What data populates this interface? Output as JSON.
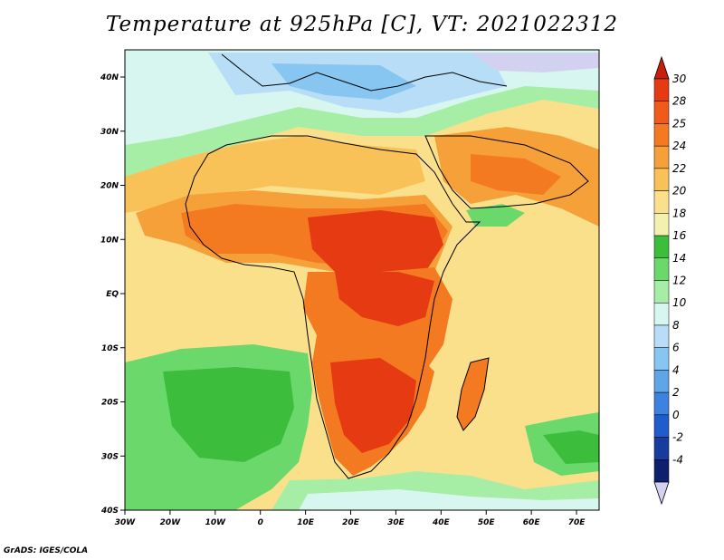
{
  "title": "Temperature at 925hPa [C], VT: 2021022312",
  "footer": "GrADS: IGES/COLA",
  "map": {
    "lon_labels": [
      "30W",
      "20W",
      "10W",
      "0",
      "10E",
      "20E",
      "30E",
      "40E",
      "50E",
      "60E",
      "70E"
    ],
    "lat_labels": [
      "40N",
      "30N",
      "20N",
      "10N",
      "EQ",
      "10S",
      "20S",
      "30S",
      "40S"
    ]
  },
  "colorbar": {
    "labels": [
      "30",
      "28",
      "25",
      "24",
      "22",
      "20",
      "18",
      "16",
      "14",
      "12",
      "10",
      "8",
      "6",
      "4",
      "2",
      "0",
      "-2",
      "-4"
    ],
    "colors": [
      "#e63a12",
      "#f05a1a",
      "#f47a22",
      "#f6a03a",
      "#f8c258",
      "#fae08a",
      "#f3f0b0",
      "#3cbe3c",
      "#6bd86b",
      "#a6eea6",
      "#d8f6f0",
      "#b7def6",
      "#86c6f0",
      "#5ea6e8",
      "#3c82de",
      "#1f5ccc",
      "#173c9e",
      "#0e1f6e"
    ],
    "top_arrow_color": "#c81e0a",
    "bottom_arrow_color": "#d2d2f0"
  }
}
